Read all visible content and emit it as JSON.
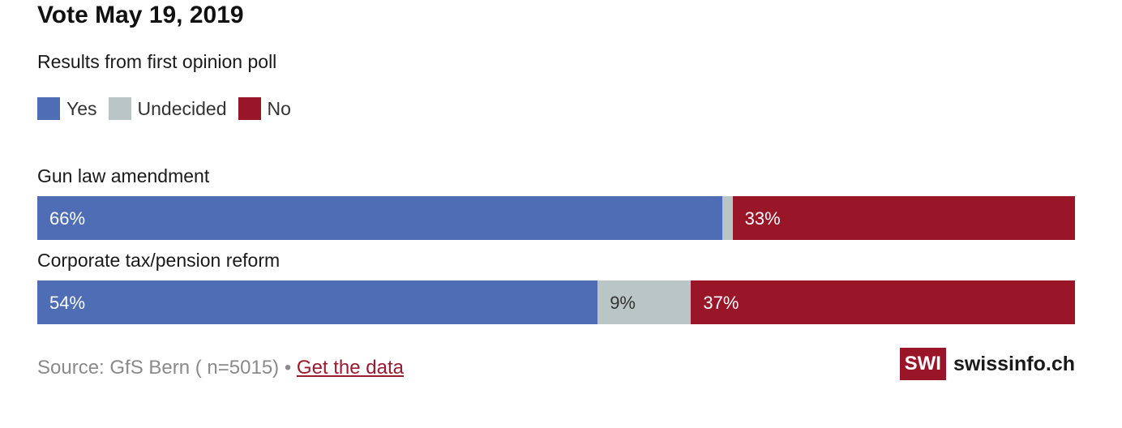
{
  "chart_data": {
    "type": "bar",
    "orientation": "horizontal",
    "stacked": true,
    "title": "Vote May 19, 2019",
    "subtitle": "Results from first opinion poll",
    "legend_position": "top-left",
    "grid": false,
    "xlim": [
      0,
      100
    ],
    "categories": [
      "Gun law amendment",
      "Corporate tax/pension reform"
    ],
    "series": [
      {
        "name": "Yes",
        "color": "#4e6db4",
        "values": [
          66,
          54
        ],
        "labels": [
          "66%",
          "54%"
        ],
        "label_color": "#ffffff"
      },
      {
        "name": "Undecided",
        "color": "#bac5c6",
        "values": [
          1,
          9
        ],
        "labels": [
          "",
          "9%"
        ],
        "label_color": "#333333"
      },
      {
        "name": "No",
        "color": "#991628",
        "values": [
          33,
          37
        ],
        "labels": [
          "33%",
          "37%"
        ],
        "label_color": "#ffffff"
      }
    ]
  },
  "footer": {
    "source_text": "Source: GfS Bern ( n=5015) •",
    "data_link": "Get the data"
  },
  "logo": {
    "badge": "SWI",
    "name": "swissinfo.ch"
  }
}
